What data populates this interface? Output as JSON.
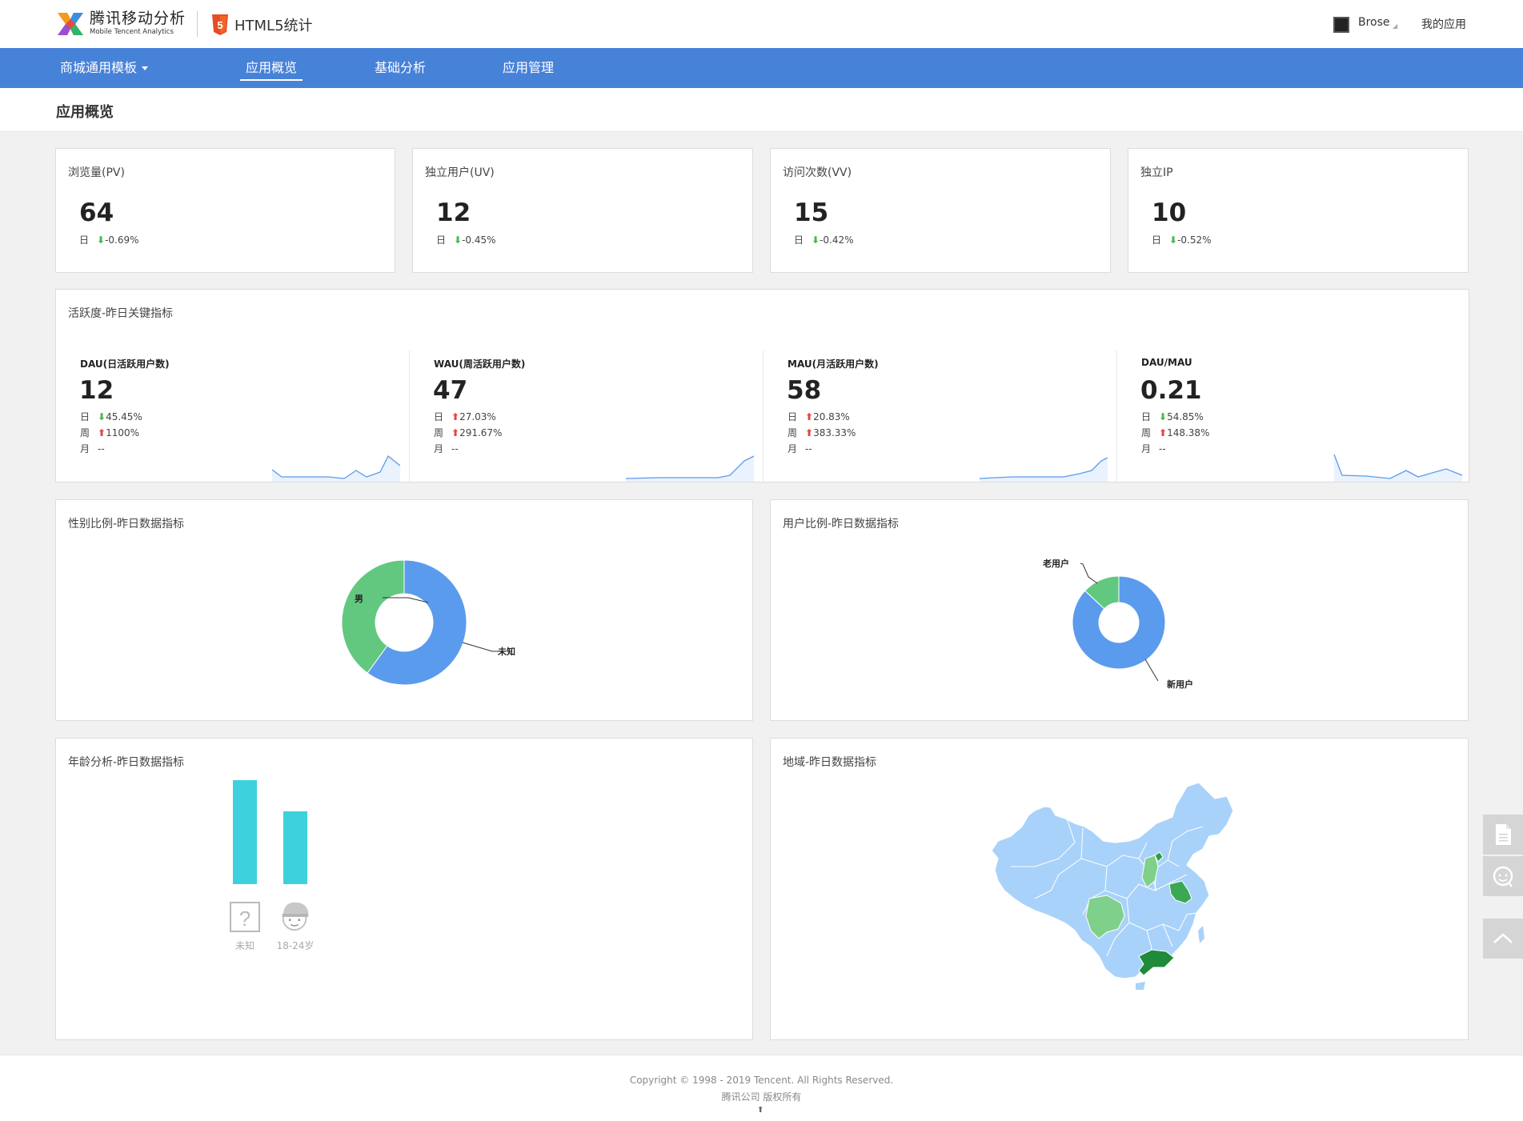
{
  "header": {
    "brand_name": "腾讯移动分析",
    "brand_sub": "Mobile Tencent Analytics",
    "product_title": "HTML5统计",
    "user_name": "Brose",
    "my_apps": "我的应用"
  },
  "nav": {
    "app_selector": "商城通用模板",
    "tabs": [
      {
        "label": "应用概览",
        "active": true
      },
      {
        "label": "基础分析",
        "active": false
      },
      {
        "label": "应用管理",
        "active": false
      }
    ]
  },
  "page": {
    "title": "应用概览"
  },
  "kpis": [
    {
      "title": "浏览量(PV)",
      "value": "64",
      "period": "日",
      "change": "-0.69%",
      "direction": "down"
    },
    {
      "title": "独立用户(UV)",
      "value": "12",
      "period": "日",
      "change": "-0.45%",
      "direction": "down"
    },
    {
      "title": "访问次数(VV)",
      "value": "15",
      "period": "日",
      "change": "-0.42%",
      "direction": "down"
    },
    {
      "title": "独立IP",
      "value": "10",
      "period": "日",
      "change": "-0.52%",
      "direction": "down"
    }
  ],
  "activity": {
    "title": "活跃度-昨日关键指标",
    "metrics": [
      {
        "label": "DAU(日活跃用户数)",
        "value": "12",
        "rows": [
          {
            "period": "日",
            "change": "45.45%",
            "direction": "down"
          },
          {
            "period": "周",
            "change": "1100%",
            "direction": "up"
          },
          {
            "period": "月",
            "change": "--",
            "direction": "none"
          }
        ]
      },
      {
        "label": "WAU(周活跃用户数)",
        "value": "47",
        "rows": [
          {
            "period": "日",
            "change": "27.03%",
            "direction": "up"
          },
          {
            "period": "周",
            "change": "291.67%",
            "direction": "up"
          },
          {
            "period": "月",
            "change": "--",
            "direction": "none"
          }
        ]
      },
      {
        "label": "MAU(月活跃用户数)",
        "value": "58",
        "rows": [
          {
            "period": "日",
            "change": "20.83%",
            "direction": "up"
          },
          {
            "period": "周",
            "change": "383.33%",
            "direction": "up"
          },
          {
            "period": "月",
            "change": "--",
            "direction": "none"
          }
        ]
      },
      {
        "label": "DAU/MAU",
        "value": "0.21",
        "rows": [
          {
            "period": "日",
            "change": "54.85%",
            "direction": "down"
          },
          {
            "period": "周",
            "change": "148.38%",
            "direction": "up"
          },
          {
            "period": "月",
            "change": "--",
            "direction": "none"
          }
        ]
      }
    ]
  },
  "gender": {
    "title": "性别比例-昨日数据指标",
    "chart_data": {
      "type": "pie",
      "slices": [
        {
          "name": "未知",
          "value": 0.6,
          "color": "#5b9bed"
        },
        {
          "name": "男",
          "value": 0.4,
          "color": "#62c87f"
        }
      ]
    }
  },
  "user_ratio": {
    "title": "用户比例-昨日数据指标",
    "chart_data": {
      "type": "pie",
      "slices": [
        {
          "name": "新用户",
          "value": 0.87,
          "color": "#5b9bed"
        },
        {
          "name": "老用户",
          "value": 0.13,
          "color": "#62c87f"
        }
      ]
    }
  },
  "age": {
    "title": "年龄分析-昨日数据指标",
    "chart_data": {
      "type": "bar",
      "categories": [
        "未知",
        "18-24岁"
      ],
      "values": [
        6,
        4.2
      ],
      "color": "#3dd1de"
    }
  },
  "region": {
    "title": "地域-昨日数据指标"
  },
  "footer": {
    "copyright": "Copyright © 1998 - 2019 Tencent. All Rights Reserved.",
    "company": "腾讯公司 版权所有"
  },
  "colors": {
    "nav_bg": "#4782d9",
    "accent_green": "#4bb84b",
    "accent_red": "#e54444",
    "map_fill": "#a9d2fa"
  }
}
